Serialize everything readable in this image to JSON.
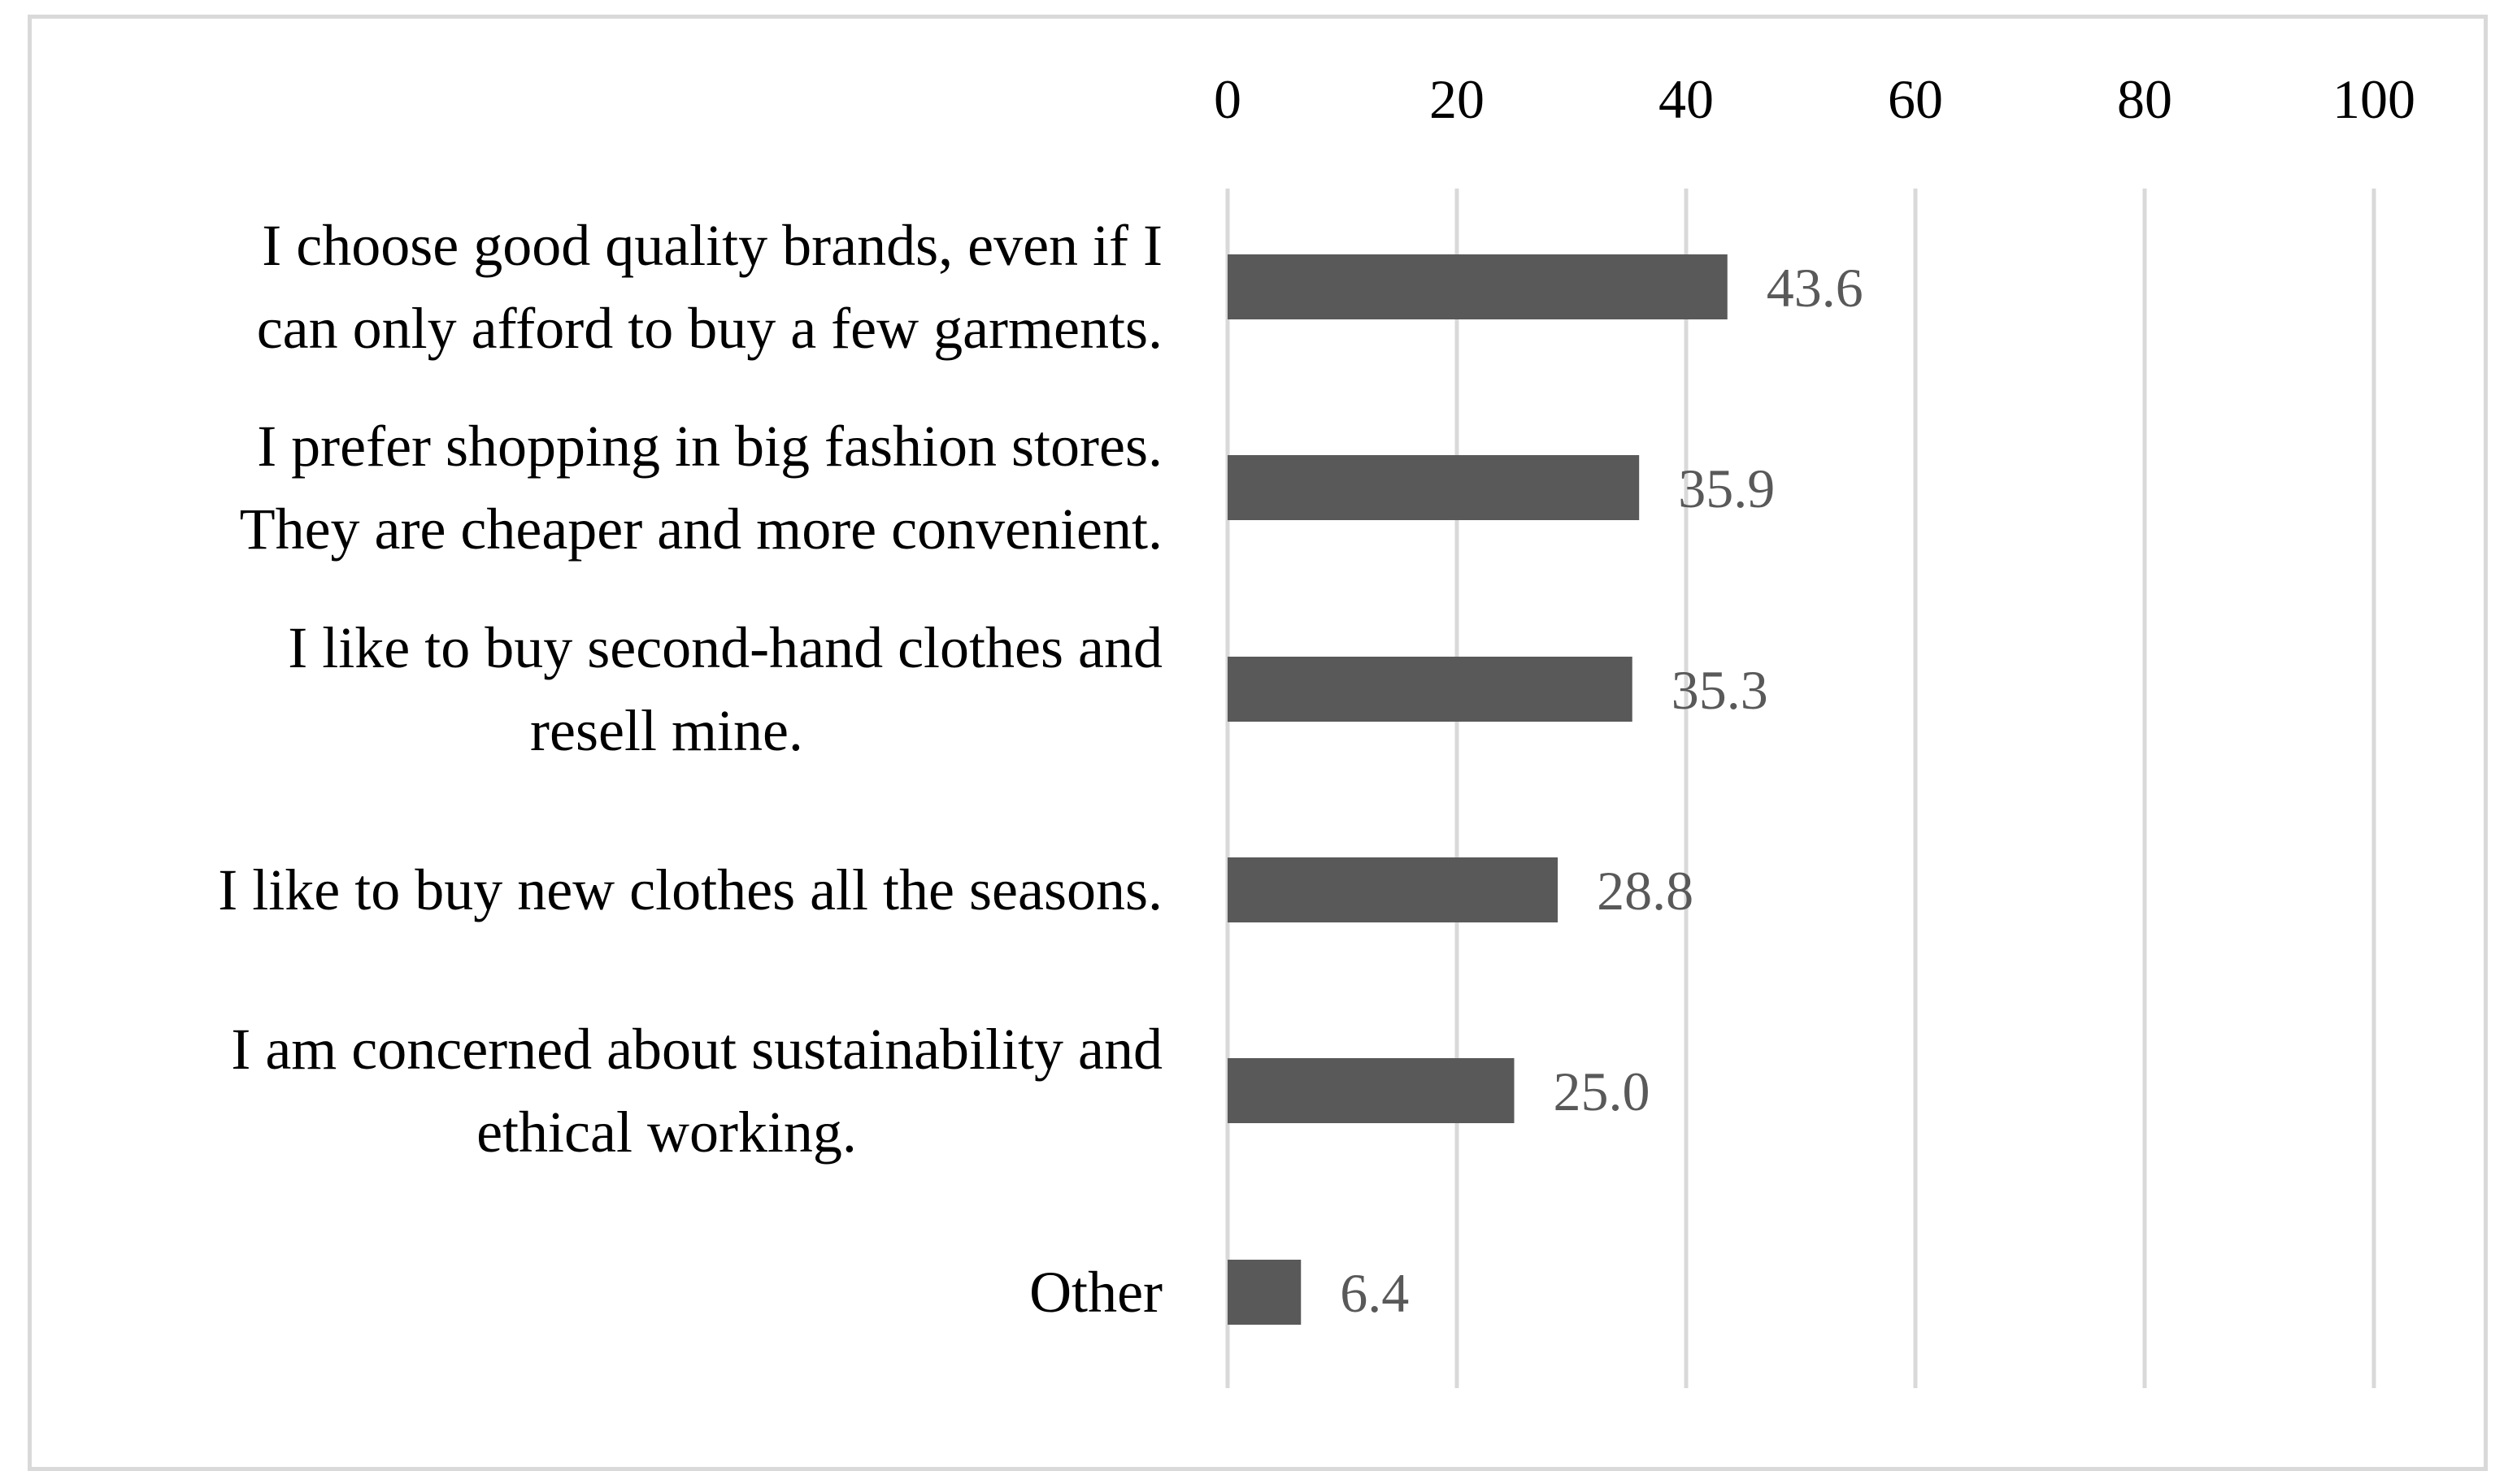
{
  "chart_data": {
    "type": "bar",
    "orientation": "horizontal",
    "categories": [
      [
        "I choose good quality brands, even if I",
        "can only afford to buy a few garments."
      ],
      [
        "I prefer shopping in big fashion stores.",
        "They are cheaper and more convenient."
      ],
      [
        "I like to buy second-hand clothes and",
        "resell mine."
      ],
      [
        "I like to buy new clothes all the seasons."
      ],
      [
        "I am concerned about sustainability and",
        "ethical working."
      ],
      [
        "Other"
      ]
    ],
    "values": [
      43.6,
      35.9,
      35.3,
      28.8,
      25.0,
      6.4
    ],
    "data_labels": [
      "43.6",
      "35.9",
      "35.3",
      "28.8",
      "25.0",
      "6.4"
    ],
    "xlim": [
      0,
      100
    ],
    "x_ticks": [
      "0",
      "20",
      "40",
      "60",
      "80",
      "100"
    ],
    "x_axis_position": "top",
    "grid": true,
    "legend": "none",
    "title": "",
    "xlabel": "",
    "ylabel": "",
    "colors": {
      "bar": "#595959",
      "grid": "#d9d9d9",
      "frame": "#d9d9d9",
      "data_label": "#595959",
      "text": "#000000"
    }
  }
}
